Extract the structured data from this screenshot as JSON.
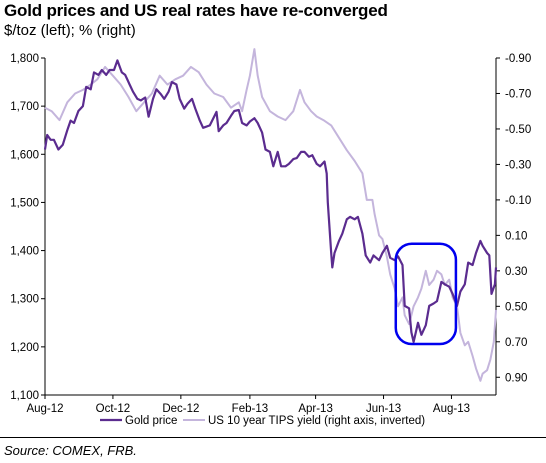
{
  "chart_data": {
    "type": "line",
    "title": "Gold prices and US real rates have re-converged",
    "subtitle": "$/toz (left); % (right)",
    "source": "Source: COMEX, FRB.",
    "x_tick_labels": [
      "Aug-12",
      "Oct-12",
      "Dec-12",
      "Feb-13",
      "Apr-13",
      "Jun-13",
      "Aug-13"
    ],
    "x_range": [
      "2012-08-01",
      "2013-09-10"
    ],
    "left_axis": {
      "ylim": [
        1100,
        1800
      ],
      "ticks": [
        1100,
        1200,
        1300,
        1400,
        1500,
        1600,
        1700,
        1800
      ],
      "tick_labels": [
        "1,100",
        "1,200",
        "1,300",
        "1,400",
        "1,500",
        "1,600",
        "1,700",
        "1,800"
      ]
    },
    "right_axis": {
      "ylim": [
        -0.9,
        1.0
      ],
      "inverted": true,
      "ticks": [
        -0.9,
        -0.7,
        -0.5,
        -0.3,
        -0.1,
        0.1,
        0.3,
        0.5,
        0.7,
        0.9
      ],
      "tick_labels": [
        "-0.90",
        "-0.70",
        "-0.50",
        "-0.30",
        "-0.10",
        "0.10",
        "0.30",
        "0.50",
        "0.70",
        "0.90"
      ]
    },
    "legend_position": "bottom",
    "series": [
      {
        "name": "Gold price",
        "axis": "left",
        "color": "#5b2c8f",
        "points": [
          [
            "2012-08-01",
            1610
          ],
          [
            "2012-08-03",
            1640
          ],
          [
            "2012-08-06",
            1630
          ],
          [
            "2012-08-09",
            1630
          ],
          [
            "2012-08-13",
            1610
          ],
          [
            "2012-08-17",
            1620
          ],
          [
            "2012-08-21",
            1650
          ],
          [
            "2012-08-24",
            1670
          ],
          [
            "2012-08-27",
            1665
          ],
          [
            "2012-08-31",
            1690
          ],
          [
            "2012-09-04",
            1700
          ],
          [
            "2012-09-07",
            1740
          ],
          [
            "2012-09-11",
            1735
          ],
          [
            "2012-09-14",
            1770
          ],
          [
            "2012-09-18",
            1765
          ],
          [
            "2012-09-21",
            1775
          ],
          [
            "2012-09-25",
            1765
          ],
          [
            "2012-09-28",
            1775
          ],
          [
            "2012-10-02",
            1775
          ],
          [
            "2012-10-05",
            1795
          ],
          [
            "2012-10-09",
            1770
          ],
          [
            "2012-10-12",
            1765
          ],
          [
            "2012-10-16",
            1745
          ],
          [
            "2012-10-19",
            1730
          ],
          [
            "2012-10-23",
            1715
          ],
          [
            "2012-10-26",
            1712
          ],
          [
            "2012-10-30",
            1718
          ],
          [
            "2012-11-02",
            1678
          ],
          [
            "2012-11-06",
            1715
          ],
          [
            "2012-11-09",
            1735
          ],
          [
            "2012-11-13",
            1725
          ],
          [
            "2012-11-16",
            1715
          ],
          [
            "2012-11-20",
            1730
          ],
          [
            "2012-11-23",
            1750
          ],
          [
            "2012-11-27",
            1745
          ],
          [
            "2012-11-30",
            1715
          ],
          [
            "2012-12-04",
            1695
          ],
          [
            "2012-12-07",
            1705
          ],
          [
            "2012-12-11",
            1715
          ],
          [
            "2012-12-14",
            1695
          ],
          [
            "2012-12-18",
            1670
          ],
          [
            "2012-12-21",
            1655
          ],
          [
            "2012-12-27",
            1660
          ],
          [
            "2013-01-02",
            1688
          ],
          [
            "2013-01-04",
            1648
          ],
          [
            "2013-01-08",
            1660
          ],
          [
            "2013-01-11",
            1665
          ],
          [
            "2013-01-15",
            1680
          ],
          [
            "2013-01-18",
            1690
          ],
          [
            "2013-01-22",
            1692
          ],
          [
            "2013-01-25",
            1665
          ],
          [
            "2013-01-29",
            1660
          ],
          [
            "2013-02-01",
            1668
          ],
          [
            "2013-02-05",
            1675
          ],
          [
            "2013-02-08",
            1665
          ],
          [
            "2013-02-12",
            1645
          ],
          [
            "2013-02-15",
            1610
          ],
          [
            "2013-02-19",
            1605
          ],
          [
            "2013-02-22",
            1575
          ],
          [
            "2013-02-26",
            1605
          ],
          [
            "2013-03-01",
            1575
          ],
          [
            "2013-03-05",
            1575
          ],
          [
            "2013-03-08",
            1580
          ],
          [
            "2013-03-12",
            1590
          ],
          [
            "2013-03-15",
            1592
          ],
          [
            "2013-03-19",
            1605
          ],
          [
            "2013-03-22",
            1605
          ],
          [
            "2013-03-26",
            1595
          ],
          [
            "2013-03-29",
            1598
          ],
          [
            "2013-04-02",
            1580
          ],
          [
            "2013-04-05",
            1575
          ],
          [
            "2013-04-09",
            1585
          ],
          [
            "2013-04-11",
            1560
          ],
          [
            "2013-04-12",
            1500
          ],
          [
            "2013-04-15",
            1395
          ],
          [
            "2013-04-16",
            1365
          ],
          [
            "2013-04-18",
            1395
          ],
          [
            "2013-04-22",
            1420
          ],
          [
            "2013-04-25",
            1435
          ],
          [
            "2013-04-29",
            1465
          ],
          [
            "2013-05-02",
            1470
          ],
          [
            "2013-05-06",
            1465
          ],
          [
            "2013-05-09",
            1470
          ],
          [
            "2013-05-13",
            1435
          ],
          [
            "2013-05-16",
            1390
          ],
          [
            "2013-05-20",
            1375
          ],
          [
            "2013-05-23",
            1390
          ],
          [
            "2013-05-28",
            1380
          ],
          [
            "2013-05-31",
            1395
          ],
          [
            "2013-06-04",
            1410
          ],
          [
            "2013-06-07",
            1385
          ],
          [
            "2013-06-11",
            1380
          ],
          [
            "2013-06-14",
            1388
          ],
          [
            "2013-06-18",
            1370
          ],
          [
            "2013-06-20",
            1285
          ],
          [
            "2013-06-24",
            1280
          ],
          [
            "2013-06-26",
            1230
          ],
          [
            "2013-06-28",
            1210
          ],
          [
            "2013-07-02",
            1250
          ],
          [
            "2013-07-05",
            1225
          ],
          [
            "2013-07-09",
            1245
          ],
          [
            "2013-07-12",
            1285
          ],
          [
            "2013-07-16",
            1290
          ],
          [
            "2013-07-19",
            1295
          ],
          [
            "2013-07-23",
            1335
          ],
          [
            "2013-07-26",
            1330
          ],
          [
            "2013-07-30",
            1325
          ],
          [
            "2013-08-02",
            1310
          ],
          [
            "2013-08-06",
            1285
          ],
          [
            "2013-08-09",
            1315
          ],
          [
            "2013-08-13",
            1330
          ],
          [
            "2013-08-16",
            1375
          ],
          [
            "2013-08-20",
            1370
          ],
          [
            "2013-08-23",
            1395
          ],
          [
            "2013-08-27",
            1420
          ],
          [
            "2013-08-29",
            1410
          ],
          [
            "2013-09-02",
            1395
          ],
          [
            "2013-09-04",
            1390
          ],
          [
            "2013-09-06",
            1310
          ],
          [
            "2013-09-09",
            1330
          ],
          [
            "2013-09-10",
            1365
          ]
        ]
      },
      {
        "name": "US 10 year TIPS yield (right axis, inverted)",
        "axis": "right",
        "color": "#c4b5dc",
        "points": [
          [
            "2012-08-01",
            -0.62
          ],
          [
            "2012-08-07",
            -0.6
          ],
          [
            "2012-08-14",
            -0.55
          ],
          [
            "2012-08-21",
            -0.65
          ],
          [
            "2012-08-28",
            -0.7
          ],
          [
            "2012-09-04",
            -0.72
          ],
          [
            "2012-09-11",
            -0.75
          ],
          [
            "2012-09-17",
            -0.78
          ],
          [
            "2012-09-24",
            -0.85
          ],
          [
            "2012-10-01",
            -0.8
          ],
          [
            "2012-10-08",
            -0.75
          ],
          [
            "2012-10-15",
            -0.68
          ],
          [
            "2012-10-22",
            -0.6
          ],
          [
            "2012-10-29",
            -0.65
          ],
          [
            "2012-11-05",
            -0.7
          ],
          [
            "2012-11-12",
            -0.8
          ],
          [
            "2012-11-19",
            -0.75
          ],
          [
            "2012-11-26",
            -0.78
          ],
          [
            "2012-12-03",
            -0.8
          ],
          [
            "2012-12-10",
            -0.85
          ],
          [
            "2012-12-17",
            -0.82
          ],
          [
            "2012-12-24",
            -0.75
          ],
          [
            "2012-12-31",
            -0.7
          ],
          [
            "2013-01-08",
            -0.68
          ],
          [
            "2013-01-15",
            -0.62
          ],
          [
            "2013-01-22",
            -0.65
          ],
          [
            "2013-01-25",
            -0.6
          ],
          [
            "2013-01-29",
            -0.72
          ],
          [
            "2013-02-01",
            -0.8
          ],
          [
            "2013-02-05",
            -0.95
          ],
          [
            "2013-02-08",
            -0.8
          ],
          [
            "2013-02-12",
            -0.68
          ],
          [
            "2013-02-19",
            -0.6
          ],
          [
            "2013-02-26",
            -0.57
          ],
          [
            "2013-03-05",
            -0.55
          ],
          [
            "2013-03-12",
            -0.6
          ],
          [
            "2013-03-18",
            -0.72
          ],
          [
            "2013-03-22",
            -0.65
          ],
          [
            "2013-03-28",
            -0.6
          ],
          [
            "2013-04-02",
            -0.57
          ],
          [
            "2013-04-08",
            -0.55
          ],
          [
            "2013-04-15",
            -0.52
          ],
          [
            "2013-04-22",
            -0.45
          ],
          [
            "2013-04-29",
            -0.38
          ],
          [
            "2013-05-06",
            -0.32
          ],
          [
            "2013-05-13",
            -0.25
          ],
          [
            "2013-05-17",
            -0.1
          ],
          [
            "2013-05-22",
            -0.1
          ],
          [
            "2013-05-24",
            -0.02
          ],
          [
            "2013-05-28",
            0.1
          ],
          [
            "2013-05-31",
            0.12
          ],
          [
            "2013-06-04",
            0.22
          ],
          [
            "2013-06-07",
            0.32
          ],
          [
            "2013-06-11",
            0.4
          ],
          [
            "2013-06-14",
            0.5
          ],
          [
            "2013-06-18",
            0.45
          ],
          [
            "2013-06-20",
            0.55
          ],
          [
            "2013-06-24",
            0.6
          ],
          [
            "2013-06-26",
            0.55
          ],
          [
            "2013-06-28",
            0.5
          ],
          [
            "2013-07-02",
            0.45
          ],
          [
            "2013-07-05",
            0.4
          ],
          [
            "2013-07-09",
            0.3
          ],
          [
            "2013-07-12",
            0.38
          ],
          [
            "2013-07-16",
            0.35
          ],
          [
            "2013-07-19",
            0.3
          ],
          [
            "2013-07-23",
            0.32
          ],
          [
            "2013-07-26",
            0.38
          ],
          [
            "2013-07-30",
            0.35
          ],
          [
            "2013-08-02",
            0.45
          ],
          [
            "2013-08-06",
            0.5
          ],
          [
            "2013-08-09",
            0.65
          ],
          [
            "2013-08-13",
            0.72
          ],
          [
            "2013-08-16",
            0.7
          ],
          [
            "2013-08-20",
            0.78
          ],
          [
            "2013-08-23",
            0.85
          ],
          [
            "2013-08-27",
            0.92
          ],
          [
            "2013-08-29",
            0.88
          ],
          [
            "2013-09-02",
            0.86
          ],
          [
            "2013-09-05",
            0.8
          ],
          [
            "2013-09-08",
            0.7
          ],
          [
            "2013-09-10",
            0.52
          ]
        ]
      }
    ],
    "annotations": [
      {
        "type": "rounded-rectangle",
        "color": "#0000ee",
        "x_range": [
          "2013-06-12",
          "2013-08-05"
        ],
        "y_range_left": [
          1210,
          1410
        ]
      }
    ]
  }
}
